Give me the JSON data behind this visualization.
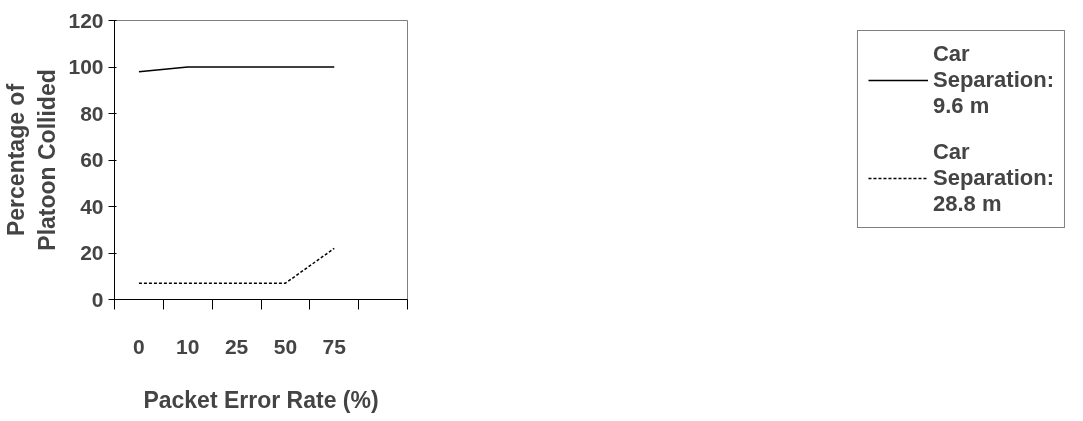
{
  "chart_data": {
    "type": "line",
    "xlabel": "Packet Error Rate (%)",
    "ylabel": "Percentage of Platoon Collided",
    "categories": [
      "0",
      "10",
      "25",
      "50",
      "75"
    ],
    "series": [
      {
        "name": "Car Separation: 9.6 m",
        "color": "#000000",
        "line_style": "solid",
        "values": [
          98,
          100,
          100,
          100,
          100
        ]
      },
      {
        "name": "Car Separation: 28.8 m",
        "color": "#000000",
        "line_style": "dotted",
        "values": [
          7,
          7,
          7,
          7,
          22
        ]
      }
    ],
    "ylim": [
      0,
      120
    ],
    "yticks": [
      0,
      20,
      40,
      60,
      80,
      100,
      120
    ],
    "grid": false,
    "legend": "right",
    "marker": "none"
  }
}
